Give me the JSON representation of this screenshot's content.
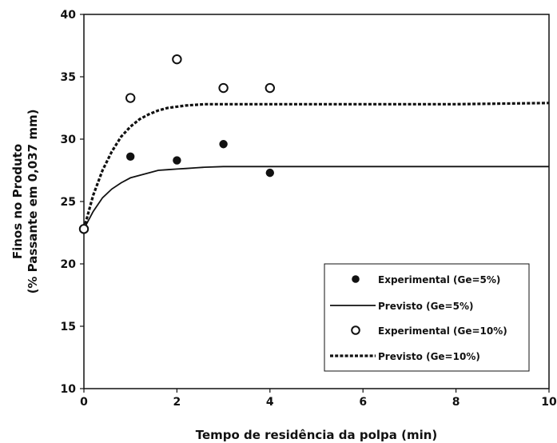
{
  "chart_data": {
    "type": "scatter",
    "xlabel": "Tempo de residência da polpa (min)",
    "ylabel_line1": "Finos no Produto",
    "ylabel_line2": "(% Passante em 0,037 mm)",
    "xlim": [
      0,
      10
    ],
    "ylim": [
      10,
      40
    ],
    "x_ticks": [
      "0",
      "2",
      "4",
      "6",
      "8",
      "10"
    ],
    "y_ticks": [
      "10",
      "15",
      "20",
      "25",
      "30",
      "35",
      "40"
    ],
    "grid": false,
    "legend_position": "bottom-right",
    "series": [
      {
        "name": "Experimental (Ge=5%)",
        "kind": "points",
        "marker": "filled-circle",
        "color": "#111111",
        "x": [
          0,
          1,
          2,
          3,
          4
        ],
        "y": [
          22.8,
          28.6,
          28.3,
          29.6,
          27.3
        ]
      },
      {
        "name": "Previsto (Ge=5%)",
        "kind": "line",
        "line_style": "solid",
        "color": "#111111",
        "x": [
          0,
          0.2,
          0.4,
          0.6,
          0.8,
          1.0,
          1.2,
          1.4,
          1.6,
          1.8,
          2.0,
          2.2,
          2.4,
          2.6,
          3.0,
          4.0,
          5.0,
          6.0,
          8.0,
          10.0
        ],
        "y": [
          22.8,
          24.2,
          25.3,
          26.0,
          26.5,
          26.9,
          27.1,
          27.3,
          27.5,
          27.55,
          27.6,
          27.65,
          27.7,
          27.75,
          27.8,
          27.8,
          27.8,
          27.8,
          27.8,
          27.8
        ]
      },
      {
        "name": "Experimental (Ge=10%)",
        "kind": "points",
        "marker": "open-circle",
        "color": "#111111",
        "x": [
          0,
          1,
          2,
          3,
          4
        ],
        "y": [
          22.8,
          33.3,
          36.4,
          34.1,
          34.1
        ]
      },
      {
        "name": "Previsto (Ge=10%)",
        "kind": "line",
        "line_style": "dashed",
        "color": "#111111",
        "x": [
          0,
          0.2,
          0.4,
          0.6,
          0.8,
          1.0,
          1.2,
          1.4,
          1.6,
          1.8,
          2.0,
          2.2,
          2.4,
          2.6,
          3.0,
          4.0,
          5.0,
          6.0,
          8.0,
          10.0
        ],
        "y": [
          22.8,
          25.5,
          27.5,
          29.0,
          30.2,
          31.0,
          31.6,
          32.0,
          32.3,
          32.5,
          32.6,
          32.7,
          32.75,
          32.8,
          32.8,
          32.8,
          32.8,
          32.8,
          32.8,
          32.9
        ]
      }
    ]
  }
}
